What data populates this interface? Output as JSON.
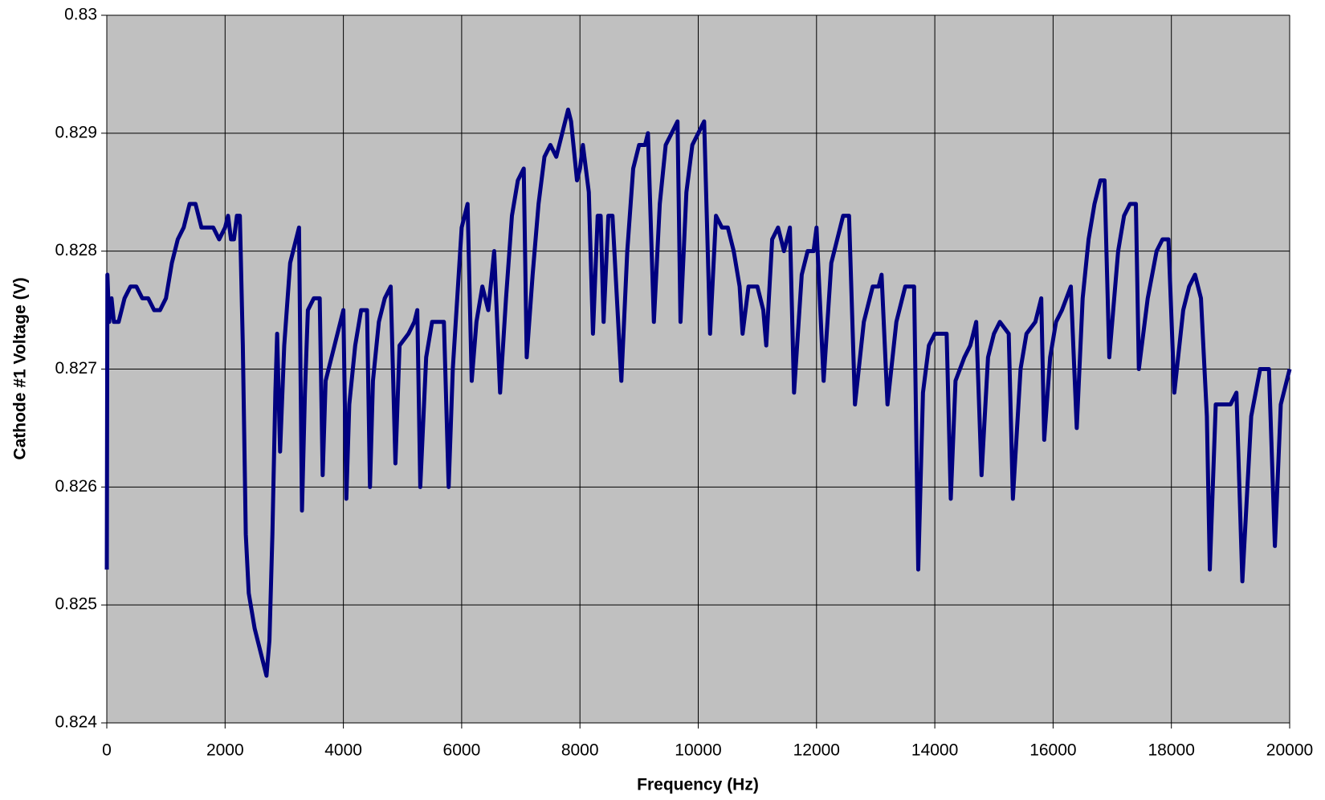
{
  "chart_data": {
    "type": "line",
    "xlabel": "Frequency (Hz)",
    "ylabel": "Cathode #1 Voltage (V)",
    "color": "#000080",
    "background": "#c0c0c0",
    "grid": true,
    "xlim": [
      0,
      20000
    ],
    "xticks": [
      0,
      2000,
      4000,
      6000,
      8000,
      10000,
      12000,
      14000,
      16000,
      18000,
      20000
    ],
    "ylim": [
      0.824,
      0.83
    ],
    "yticks": [
      0.824,
      0.825,
      0.826,
      0.827,
      0.828,
      0.829,
      0.83
    ],
    "x": [
      0,
      10,
      40,
      80,
      120,
      200,
      300,
      400,
      500,
      600,
      700,
      800,
      900,
      1000,
      1100,
      1200,
      1300,
      1400,
      1450,
      1500,
      1600,
      1700,
      1800,
      1900,
      2000,
      2050,
      2100,
      2150,
      2200,
      2250,
      2300,
      2350,
      2400,
      2500,
      2600,
      2700,
      2750,
      2800,
      2850,
      2880,
      2930,
      3000,
      3100,
      3200,
      3250,
      3300,
      3350,
      3400,
      3500,
      3550,
      3600,
      3650,
      3700,
      3800,
      3900,
      4000,
      4050,
      4100,
      4200,
      4300,
      4400,
      4450,
      4500,
      4600,
      4700,
      4800,
      4880,
      4950,
      5100,
      5200,
      5250,
      5300,
      5400,
      5500,
      5600,
      5700,
      5780,
      5850,
      5950,
      6000,
      6050,
      6100,
      6170,
      6250,
      6350,
      6450,
      6550,
      6650,
      6750,
      6850,
      6950,
      7050,
      7100,
      7200,
      7300,
      7400,
      7500,
      7600,
      7700,
      7800,
      7850,
      7950,
      8000,
      8050,
      8150,
      8220,
      8300,
      8350,
      8400,
      8480,
      8550,
      8700,
      8800,
      8900,
      9000,
      9100,
      9150,
      9250,
      9350,
      9450,
      9550,
      9650,
      9700,
      9800,
      9900,
      10000,
      10100,
      10200,
      10300,
      10400,
      10500,
      10600,
      10700,
      10750,
      10850,
      11000,
      11100,
      11150,
      11250,
      11350,
      11450,
      11550,
      11620,
      11750,
      11850,
      11950,
      12000,
      12120,
      12250,
      12350,
      12450,
      12550,
      12650,
      12800,
      12950,
      13050,
      13100,
      13200,
      13350,
      13500,
      13650,
      13720,
      13800,
      13900,
      14000,
      14100,
      14200,
      14270,
      14350,
      14500,
      14600,
      14700,
      14790,
      14900,
      15000,
      15100,
      15250,
      15320,
      15450,
      15550,
      15700,
      15800,
      15850,
      15950,
      16050,
      16150,
      16300,
      16400,
      16500,
      16600,
      16700,
      16800,
      16870,
      16950,
      17100,
      17200,
      17300,
      17400,
      17450,
      17600,
      17750,
      17850,
      17950,
      18050,
      18200,
      18300,
      18400,
      18500,
      18600,
      18650,
      18750,
      18900,
      19000,
      19100,
      19200,
      19350,
      19500,
      19650,
      19750,
      19850,
      20000
    ],
    "values": [
      0.8253,
      0.8278,
      0.8274,
      0.8276,
      0.8274,
      0.8274,
      0.8276,
      0.8277,
      0.8277,
      0.8276,
      0.8276,
      0.8275,
      0.8275,
      0.8276,
      0.8279,
      0.8281,
      0.8282,
      0.8284,
      0.8284,
      0.8284,
      0.8282,
      0.8282,
      0.8282,
      0.8281,
      0.8282,
      0.8283,
      0.8281,
      0.8281,
      0.8283,
      0.8283,
      0.8272,
      0.8256,
      0.8251,
      0.8248,
      0.8246,
      0.8244,
      0.8247,
      0.8256,
      0.8268,
      0.8273,
      0.8263,
      0.8272,
      0.8279,
      0.8281,
      0.8282,
      0.8258,
      0.8268,
      0.8275,
      0.8276,
      0.8276,
      0.8276,
      0.8261,
      0.8269,
      0.8271,
      0.8273,
      0.8275,
      0.8259,
      0.8267,
      0.8272,
      0.8275,
      0.8275,
      0.826,
      0.8269,
      0.8274,
      0.8276,
      0.8277,
      0.8262,
      0.8272,
      0.8273,
      0.8274,
      0.8275,
      0.826,
      0.8271,
      0.8274,
      0.8274,
      0.8274,
      0.826,
      0.827,
      0.8278,
      0.8282,
      0.8283,
      0.8284,
      0.8269,
      0.8274,
      0.8277,
      0.8275,
      0.828,
      0.8268,
      0.8276,
      0.8283,
      0.8286,
      0.8287,
      0.8271,
      0.8278,
      0.8284,
      0.8288,
      0.8289,
      0.8288,
      0.829,
      0.8292,
      0.8291,
      0.8286,
      0.8287,
      0.8289,
      0.8285,
      0.8273,
      0.8283,
      0.8283,
      0.8274,
      0.8283,
      0.8283,
      0.8269,
      0.828,
      0.8287,
      0.8289,
      0.8289,
      0.829,
      0.8274,
      0.8284,
      0.8289,
      0.829,
      0.8291,
      0.8274,
      0.8285,
      0.8289,
      0.829,
      0.8291,
      0.8273,
      0.8283,
      0.8282,
      0.8282,
      0.828,
      0.8277,
      0.8273,
      0.8277,
      0.8277,
      0.8275,
      0.8272,
      0.8281,
      0.8282,
      0.828,
      0.8282,
      0.8268,
      0.8278,
      0.828,
      0.828,
      0.8282,
      0.8269,
      0.8279,
      0.8281,
      0.8283,
      0.8283,
      0.8267,
      0.8274,
      0.8277,
      0.8277,
      0.8278,
      0.8267,
      0.8274,
      0.8277,
      0.8277,
      0.8253,
      0.8268,
      0.8272,
      0.8273,
      0.8273,
      0.8273,
      0.8259,
      0.8269,
      0.8271,
      0.8272,
      0.8274,
      0.8261,
      0.8271,
      0.8273,
      0.8274,
      0.8273,
      0.8259,
      0.827,
      0.8273,
      0.8274,
      0.8276,
      0.8264,
      0.8271,
      0.8274,
      0.8275,
      0.8277,
      0.8265,
      0.8276,
      0.8281,
      0.8284,
      0.8286,
      0.8286,
      0.8271,
      0.828,
      0.8283,
      0.8284,
      0.8284,
      0.827,
      0.8276,
      0.828,
      0.8281,
      0.8281,
      0.8268,
      0.8275,
      0.8277,
      0.8278,
      0.8276,
      0.8266,
      0.8253,
      0.8267,
      0.8267,
      0.8267,
      0.8268,
      0.8252,
      0.8266,
      0.827,
      0.827,
      0.8255,
      0.8267,
      0.827
    ]
  }
}
